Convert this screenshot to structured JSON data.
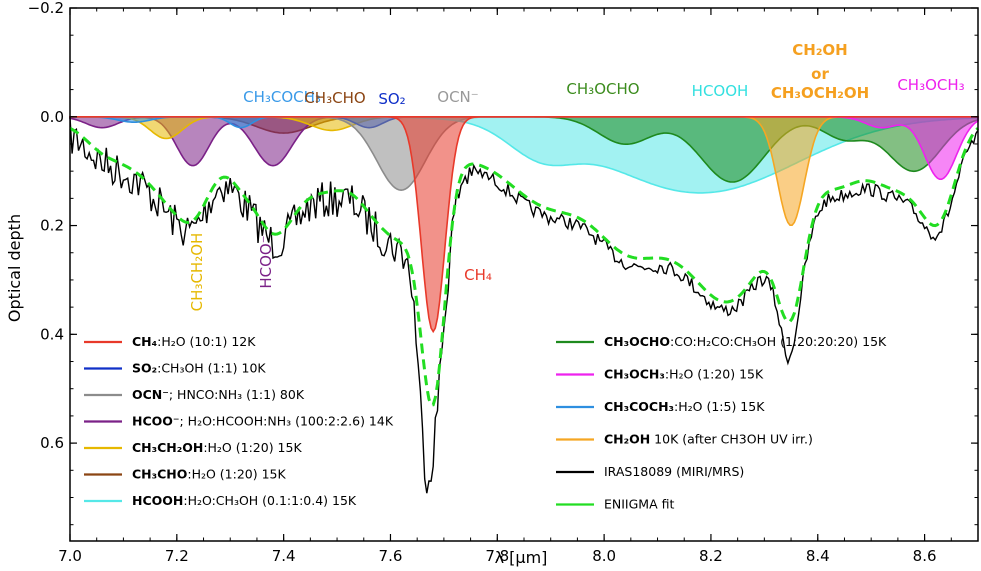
{
  "chart_data": {
    "type": "area",
    "xlabel": "λ [μm]",
    "ylabel": "Optical depth",
    "xlim": [
      7.0,
      8.7
    ],
    "ylim": [
      0.78,
      -0.2
    ],
    "y_inverted": true,
    "x_ticks": [
      "7.0",
      "7.2",
      "7.4",
      "7.6",
      "7.8",
      "8.0",
      "8.2",
      "8.4",
      "8.6"
    ],
    "y_ticks": [
      "−0.2",
      "0.0",
      "0.2",
      "0.4",
      "0.6"
    ],
    "y_tick_values": [
      -0.2,
      0.0,
      0.2,
      0.4,
      0.6
    ],
    "x_tick_values": [
      7.0,
      7.2,
      7.4,
      7.6,
      7.8,
      8.0,
      8.2,
      8.4,
      8.6
    ],
    "components": [
      {
        "key": "CH3CHO",
        "color": "#8B4513",
        "bands": [
          [
            7.4,
            0.03,
            0.05
          ]
        ]
      },
      {
        "key": "HCOO",
        "color": "#7B2187",
        "bands": [
          [
            7.23,
            0.09,
            0.03
          ],
          [
            7.38,
            0.09,
            0.035
          ],
          [
            7.06,
            0.02,
            0.03
          ]
        ]
      },
      {
        "key": "CH3CH2OH",
        "color": "#E6B800",
        "bands": [
          [
            7.18,
            0.04,
            0.03
          ],
          [
            7.49,
            0.025,
            0.04
          ]
        ]
      },
      {
        "key": "CH3COCH3",
        "color": "#2E8FE0",
        "bands": [
          [
            7.32,
            0.02,
            0.02
          ],
          [
            7.12,
            0.01,
            0.03
          ]
        ]
      },
      {
        "key": "SO2",
        "color": "#1030C8",
        "bands": [
          [
            7.56,
            0.02,
            0.025
          ]
        ]
      },
      {
        "key": "OCN",
        "color": "#8C8C8C",
        "bands": [
          [
            7.62,
            0.135,
            0.045
          ]
        ]
      },
      {
        "key": "HCOOH",
        "color": "#55E8E8",
        "bands": [
          [
            8.18,
            0.14,
            0.18
          ],
          [
            7.88,
            0.05,
            0.06
          ]
        ]
      },
      {
        "key": "CH3OCHO",
        "color": "#1E8A1E",
        "bands": [
          [
            8.24,
            0.12,
            0.06
          ],
          [
            8.04,
            0.05,
            0.05
          ],
          [
            8.58,
            0.1,
            0.05
          ],
          [
            8.45,
            0.04,
            0.04
          ]
        ]
      },
      {
        "key": "CH2OH",
        "color": "#F5A623",
        "bands": [
          [
            8.35,
            0.2,
            0.025
          ]
        ]
      },
      {
        "key": "CH3OCH3",
        "color": "#EE22EE",
        "bands": [
          [
            8.63,
            0.115,
            0.03
          ],
          [
            8.52,
            0.02,
            0.03
          ]
        ]
      },
      {
        "key": "CH4",
        "color": "#E8392A",
        "bands": [
          [
            7.68,
            0.395,
            0.022
          ]
        ]
      }
    ],
    "fit": {
      "color": "#22DD22",
      "continuum_bands": [
        [
          7.45,
          0.1,
          0.2
        ],
        [
          8.1,
          0.1,
          0.25
        ],
        [
          7.15,
          0.06,
          0.08
        ]
      ]
    },
    "observed": {
      "color": "#000000",
      "bumps": [
        [
          7.665,
          0.15,
          0.012
        ],
        [
          8.345,
          0.05,
          0.012
        ]
      ]
    },
    "labels": [
      {
        "key": "CH3COCH3",
        "text": "CH₃COCH₃",
        "color": "#3A9AE8"
      },
      {
        "key": "CH3CHO",
        "text": "CH₃CHO",
        "color": "#8B4513"
      },
      {
        "key": "SO2",
        "text": "SO₂",
        "color": "#1030C8"
      },
      {
        "key": "OCN",
        "text": "OCN⁻",
        "color": "#999999"
      },
      {
        "key": "CH3OCHO",
        "text": "CH₃OCHO",
        "color": "#3C8C1E"
      },
      {
        "key": "HCOOH",
        "text": "HCOOH",
        "color": "#33E0E0"
      },
      {
        "key": "CH2OH_a",
        "text": "CH₂OH",
        "color": "#F5A020"
      },
      {
        "key": "CH2OH_b",
        "text": "or",
        "color": "#F5A020"
      },
      {
        "key": "CH2OH_c",
        "text": "CH₃OCH₂OH",
        "color": "#F5A020"
      },
      {
        "key": "CH3OCH3",
        "text": "CH₃OCH₃",
        "color": "#EE22EE"
      },
      {
        "key": "CH4",
        "text": "CH₄",
        "color": "#E8392A"
      },
      {
        "key": "CH3CH2OH",
        "text": "CH₃CH₂OH",
        "color": "#E6B800"
      },
      {
        "key": "HCOO",
        "text": "HCOO⁻",
        "color": "#7B2187"
      }
    ],
    "legend_left": [
      {
        "bold": "CH₄",
        "rest": ":H₂O (10:1) 12K",
        "color": "#E8392A"
      },
      {
        "bold": "SO₂",
        "rest": ":CH₃OH (1:1) 10K",
        "color": "#1030C8"
      },
      {
        "bold": "OCN⁻",
        "rest": "; HNCO:NH₃ (1:1) 80K",
        "color": "#8C8C8C"
      },
      {
        "bold": "HCOO⁻",
        "rest": "; H₂O:HCOOH:NH₃ (100:2:2.6) 14K",
        "color": "#7B2187"
      },
      {
        "bold": "CH₃CH₂OH",
        "rest": ":H₂O (1:20) 15K",
        "color": "#E6B800"
      },
      {
        "bold": "CH₃CHO",
        "rest": ":H₂O (1:20) 15K",
        "color": "#8B4513"
      },
      {
        "bold": "HCOOH",
        "rest": ":H₂O:CH₃OH (0.1:1:0.4) 15K",
        "color": "#55E8E8"
      }
    ],
    "legend_right": [
      {
        "bold": "CH₃OCHO",
        "rest": ":CO:H₂CO:CH₃OH (1:20:20:20) 15K",
        "color": "#1E8A1E"
      },
      {
        "bold": "CH₃OCH₃",
        "rest": ":H₂O (1:20) 15K",
        "color": "#EE22EE"
      },
      {
        "bold": "CH₃COCH₃",
        "rest": ":H₂O (1:5) 15K",
        "color": "#2E8FE0"
      },
      {
        "bold": "CH₂OH",
        "rest": " 10K (after CH3OH UV irr.)",
        "color": "#F5A623"
      },
      {
        "bold": "",
        "rest": "IRAS18089 (MIRI/MRS)",
        "color": "#000000"
      },
      {
        "bold": "",
        "rest": "ENIIGMA fit",
        "color": "#22DD22"
      }
    ]
  }
}
